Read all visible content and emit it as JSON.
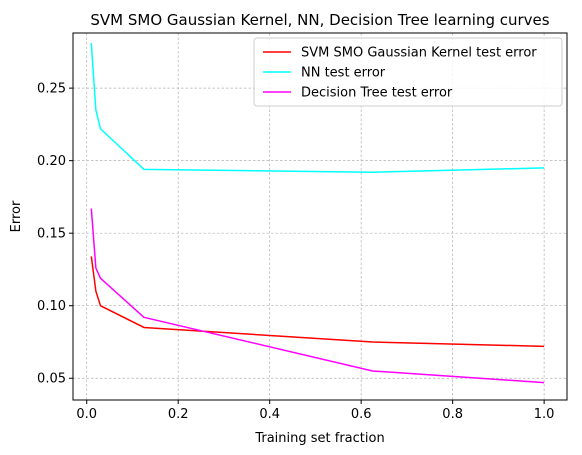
{
  "chart_data": {
    "type": "line",
    "title": "SVM SMO Gaussian Kernel, NN, Decision Tree learning curves",
    "xlabel": "Training set fraction",
    "ylabel": "Error",
    "xlim": [
      -0.03,
      1.05
    ],
    "ylim": [
      0.035,
      0.288
    ],
    "xticks": [
      "0.0",
      "0.2",
      "0.4",
      "0.6",
      "0.8",
      "1.0"
    ],
    "xtick_values": [
      0.0,
      0.2,
      0.4,
      0.6,
      0.8,
      1.0
    ],
    "yticks": [
      "0.05",
      "0.10",
      "0.15",
      "0.20",
      "0.25"
    ],
    "ytick_values": [
      0.05,
      0.1,
      0.15,
      0.2,
      0.25
    ],
    "grid": true,
    "legend_position": "upper-right",
    "series": [
      {
        "name": "SVM SMO Gaussian Kernel test error",
        "color": "#ff0000",
        "x": [
          0.01,
          0.02,
          0.03,
          0.125,
          0.625,
          1.0
        ],
        "y": [
          0.134,
          0.11,
          0.1,
          0.085,
          0.075,
          0.072
        ]
      },
      {
        "name": "NN test error",
        "color": "#00ffff",
        "x": [
          0.01,
          0.02,
          0.03,
          0.125,
          0.625,
          1.0
        ],
        "y": [
          0.281,
          0.235,
          0.222,
          0.194,
          0.192,
          0.195
        ]
      },
      {
        "name": "Decision Tree test error",
        "color": "#ff00ff",
        "x": [
          0.01,
          0.02,
          0.03,
          0.125,
          0.625,
          1.0
        ],
        "y": [
          0.167,
          0.126,
          0.119,
          0.092,
          0.055,
          0.047
        ]
      }
    ]
  }
}
